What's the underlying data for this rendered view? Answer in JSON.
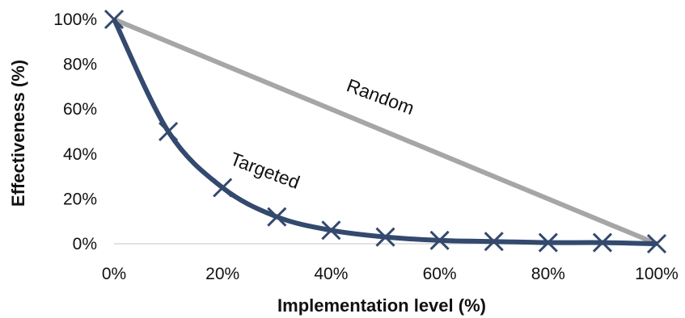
{
  "chart_data": {
    "type": "line",
    "title": "",
    "xlabel": "Implementation level (%)",
    "ylabel": "Effectiveness (%)",
    "xlim": [
      0,
      100
    ],
    "ylim": [
      0,
      100
    ],
    "x_ticks": [
      "0%",
      "20%",
      "40%",
      "60%",
      "80%",
      "100%"
    ],
    "y_ticks": [
      "0%",
      "20%",
      "40%",
      "60%",
      "80%",
      "100%"
    ],
    "grid": false,
    "legend": "none",
    "series": [
      {
        "name": "Random",
        "color": "#a6a6a6",
        "marker": "none",
        "x": [
          0,
          100
        ],
        "y": [
          100,
          0
        ]
      },
      {
        "name": "Targeted",
        "color": "#33496e",
        "marker": "x",
        "x": [
          0,
          10,
          20,
          30,
          40,
          50,
          60,
          70,
          80,
          90,
          100
        ],
        "y": [
          100,
          50,
          25,
          12,
          6,
          3,
          1.5,
          1,
          0.5,
          0.5,
          0
        ]
      }
    ]
  }
}
